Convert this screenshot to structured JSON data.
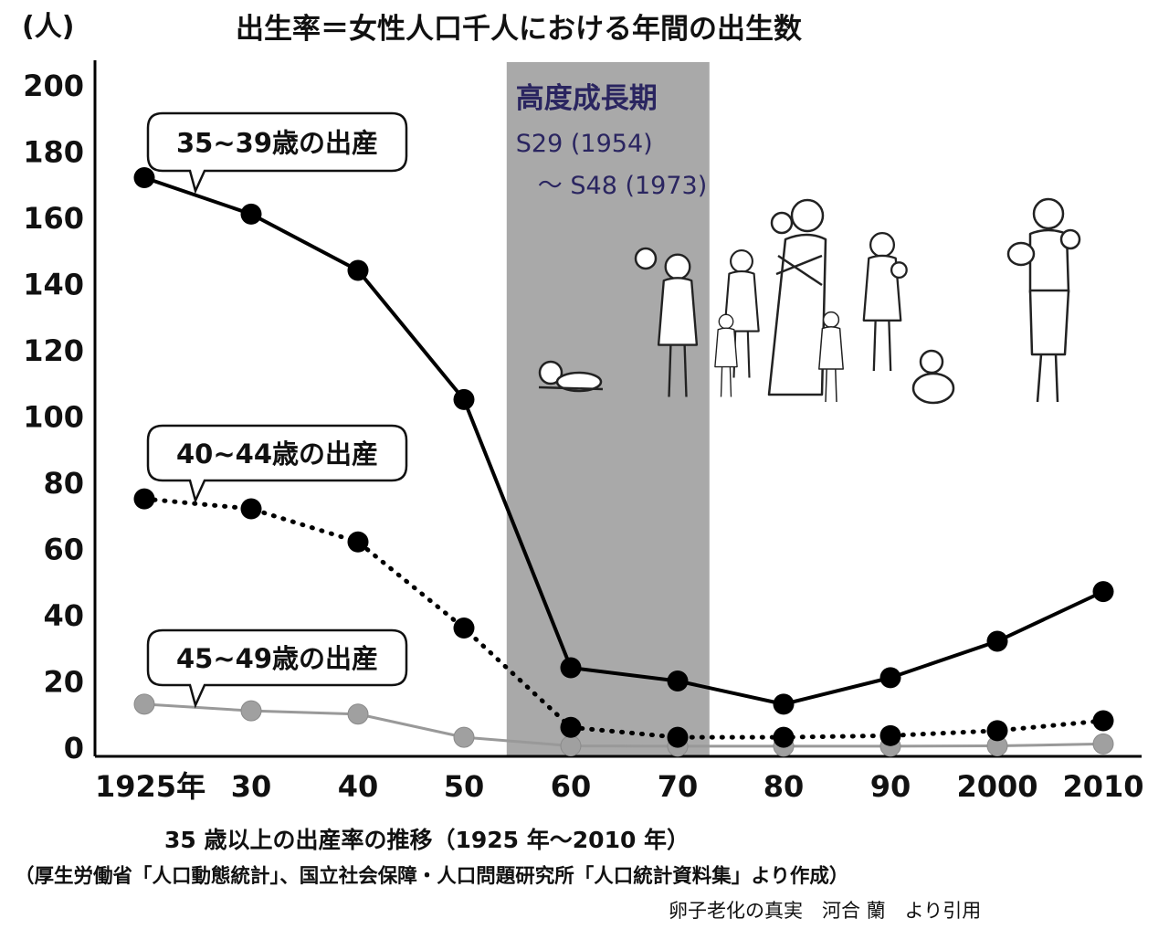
{
  "chart_data": {
    "type": "line",
    "title": "出生率＝女性人口千人における年間の出生数",
    "ylabel": "(人)",
    "xlabel": "",
    "ylim": [
      0,
      200
    ],
    "yticks": [
      0,
      20,
      40,
      60,
      80,
      100,
      120,
      140,
      160,
      180,
      200
    ],
    "categories": [
      "1925年",
      "30",
      "40",
      "50",
      "60",
      "70",
      "80",
      "90",
      "2000",
      "2010"
    ],
    "x": [
      1925,
      1930,
      1940,
      1950,
      1960,
      1970,
      1980,
      1990,
      2000,
      2010
    ],
    "series": [
      {
        "name": "35~39歳の出産",
        "style": "solid",
        "color": "#000000",
        "values": [
          172,
          161,
          144,
          105,
          24,
          20,
          13,
          21,
          32,
          47
        ]
      },
      {
        "name": "40~44歳の出産",
        "style": "dotted",
        "color": "#000000",
        "values": [
          75,
          72,
          62,
          36,
          6,
          3,
          3,
          3.5,
          5,
          8
        ]
      },
      {
        "name": "45~49歳の出産",
        "style": "solid",
        "color": "#999999",
        "values": [
          13,
          11,
          10,
          3,
          0.4,
          0.3,
          0.3,
          0.3,
          0.4,
          1
        ]
      }
    ],
    "shaded_region": {
      "label": "高度成長期",
      "line1": "S29 (1954)",
      "line2": "〜 S48 (1973)",
      "from": 1954,
      "to": 1973,
      "color": "#a9a9a9"
    },
    "caption": "35 歳以上の出産率の推移（1925 年〜2010 年）",
    "source": "（厚生労働省「人口動態統計」、国立社会保障・人口問題研究所「人口統計資料集」より作成）",
    "credit": "卵子老化の真実　河合 蘭　より引用"
  }
}
